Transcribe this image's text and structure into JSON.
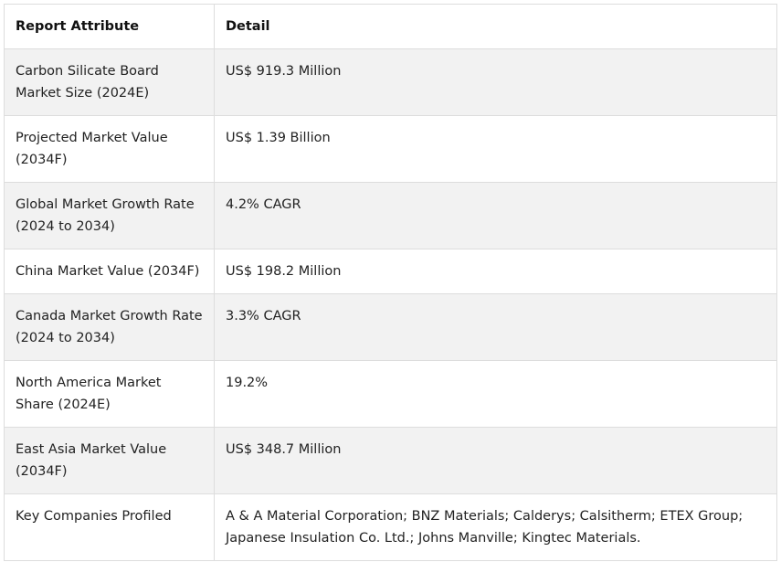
{
  "table": {
    "headers": [
      "Report Attribute",
      "Detail"
    ],
    "rows": [
      [
        "Carbon Silicate Board Market Size (2024E)",
        "US$ 919.3 Million"
      ],
      [
        "Projected Market Value (2034F)",
        "US$ 1.39 Billion"
      ],
      [
        "Global Market Growth Rate (2024 to 2034)",
        "4.2% CAGR"
      ],
      [
        "China Market Value (2034F)",
        "US$ 198.2 Million"
      ],
      [
        "Canada Market Growth Rate (2024 to 2034)",
        "3.3% CAGR"
      ],
      [
        "North America Market Share (2024E)",
        "19.2%"
      ],
      [
        "East Asia Market Value (2034F)",
        "US$ 348.7 Million"
      ],
      [
        "Key Companies Profiled",
        "A & A Material Corporation; BNZ Materials; Calderys; Calsitherm; ETEX Group; Japanese Insulation Co. Ltd.; Johns Manville; Kingtec Materials."
      ]
    ]
  }
}
